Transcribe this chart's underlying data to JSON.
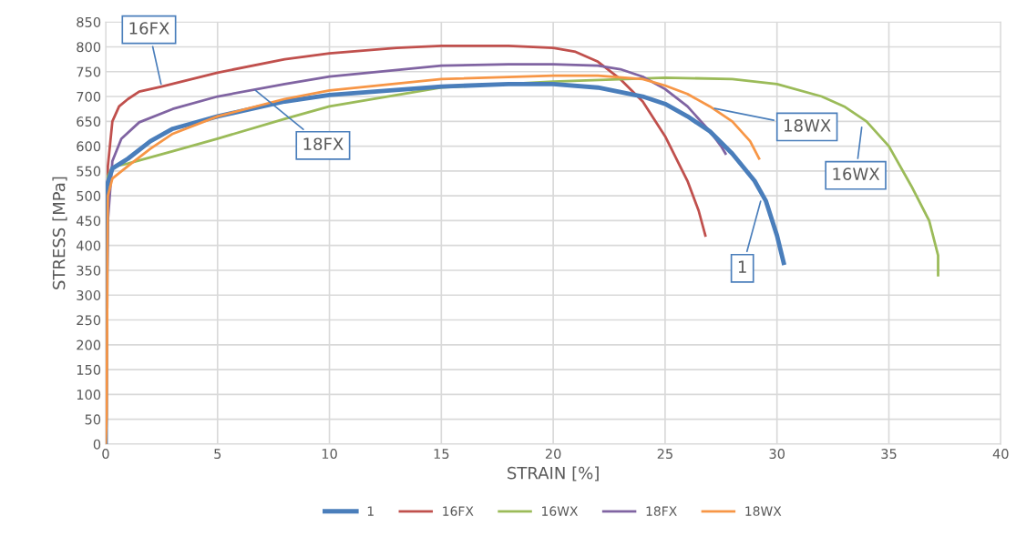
{
  "chart_data": {
    "type": "line",
    "xlabel": "STRAIN [%]",
    "ylabel": "STRESS [MPa]",
    "xlim": [
      0,
      40
    ],
    "xticks": [
      0,
      5,
      10,
      15,
      20,
      25,
      30,
      35,
      40
    ],
    "ylim": [
      0,
      850
    ],
    "yticks": [
      0,
      50,
      100,
      150,
      200,
      250,
      300,
      350,
      400,
      450,
      500,
      550,
      600,
      650,
      700,
      750,
      800,
      850
    ],
    "grid": true,
    "legend": "bottom",
    "marker": "none",
    "line_style": "solid",
    "series": [
      {
        "name": "1",
        "color": "#4a7ebb",
        "x": [
          0,
          0.05,
          0.3,
          1,
          2,
          3,
          5,
          8,
          10,
          15,
          18,
          20,
          22,
          24,
          25,
          26,
          27,
          28,
          29,
          29.5,
          30,
          30.3
        ],
        "values": [
          0,
          520,
          555,
          575,
          610,
          635,
          660,
          690,
          703,
          720,
          725,
          725,
          718,
          700,
          685,
          660,
          630,
          585,
          530,
          490,
          420,
          365
        ]
      },
      {
        "name": "16FX",
        "color": "#c0504d",
        "x": [
          0,
          0.05,
          0.1,
          0.3,
          0.6,
          1,
          1.5,
          2.5,
          5,
          8,
          10,
          13,
          15,
          18,
          20,
          21,
          22,
          23,
          24,
          25,
          26,
          26.5,
          26.8
        ],
        "values": [
          0,
          450,
          560,
          650,
          680,
          695,
          710,
          720,
          748,
          775,
          787,
          798,
          802,
          802,
          798,
          790,
          770,
          735,
          690,
          620,
          530,
          470,
          420
        ]
      },
      {
        "name": "16WX",
        "color": "#9bbb59",
        "x": [
          0,
          0.05,
          0.1,
          0.3,
          1,
          3,
          5,
          8,
          10,
          15,
          20,
          25,
          28,
          30,
          32,
          33,
          34,
          35,
          36,
          36.8,
          37.2,
          37.2
        ],
        "values": [
          0,
          300,
          540,
          558,
          565,
          590,
          615,
          655,
          680,
          718,
          730,
          738,
          735,
          725,
          700,
          680,
          650,
          600,
          520,
          450,
          380,
          340
        ]
      },
      {
        "name": "18FX",
        "color": "#8064a2",
        "x": [
          0,
          0.05,
          0.1,
          0.3,
          0.7,
          1.5,
          3,
          5,
          8,
          10,
          15,
          18,
          20,
          22,
          23,
          24,
          25,
          26,
          27,
          27.5,
          27.7
        ],
        "values": [
          0,
          280,
          450,
          570,
          615,
          648,
          675,
          700,
          725,
          740,
          762,
          765,
          765,
          762,
          755,
          740,
          715,
          680,
          630,
          600,
          585
        ]
      },
      {
        "name": "18WX",
        "color": "#f79646",
        "x": [
          0,
          0.05,
          0.08,
          0.1,
          0.3,
          1,
          2,
          3,
          5,
          8,
          10,
          15,
          20,
          22,
          24,
          25,
          26,
          27,
          28,
          28.8,
          29.2
        ],
        "values": [
          0,
          60,
          400,
          500,
          535,
          560,
          595,
          625,
          660,
          695,
          712,
          735,
          742,
          742,
          735,
          722,
          705,
          680,
          650,
          610,
          575
        ]
      }
    ],
    "annotations": [
      {
        "text": "16FX",
        "x": 2.5,
        "y": 720
      },
      {
        "text": "18FX",
        "x": 6.6,
        "y": 716
      },
      {
        "text": "18WX",
        "x": 27.1,
        "y": 677
      },
      {
        "text": "16WX",
        "x": 33.8,
        "y": 643
      },
      {
        "text": "1",
        "x": 29.3,
        "y": 494
      }
    ]
  }
}
